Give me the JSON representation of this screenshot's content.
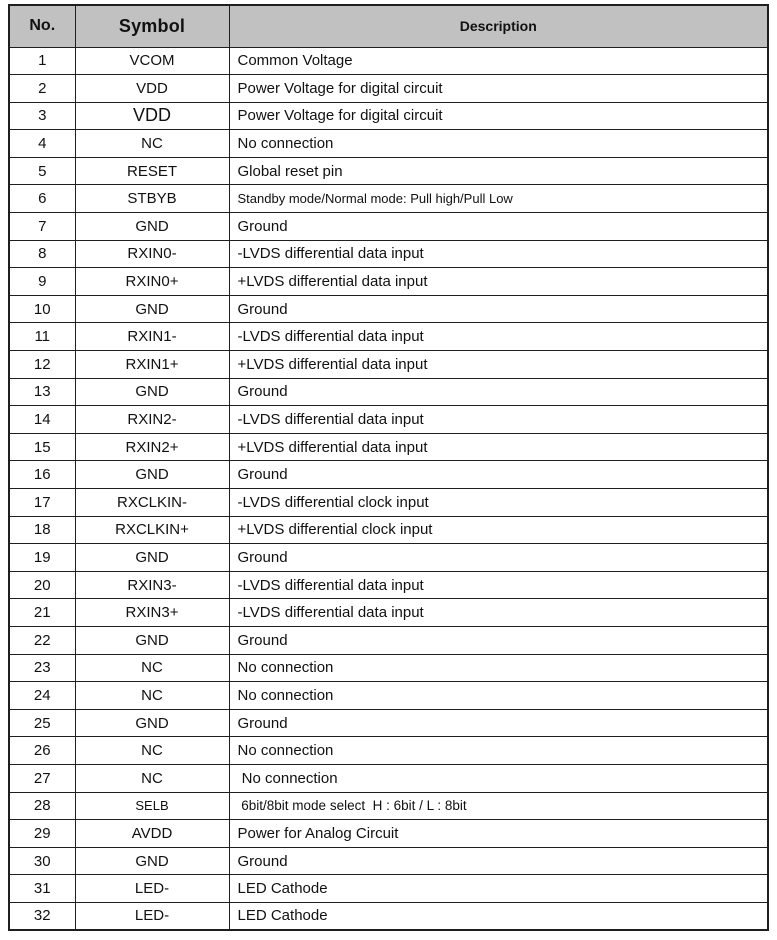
{
  "colors": {
    "page_bg": "#ffffff",
    "header_bg": "#c1c1c1",
    "border": "#1f1f1f",
    "text": "#111111"
  },
  "table": {
    "headers": {
      "no": "No.",
      "symbol": "Symbol",
      "description": "Description"
    },
    "rows": [
      {
        "no": "1",
        "symbol": "VCOM",
        "description": "Common Voltage"
      },
      {
        "no": "2",
        "symbol": "VDD",
        "description": "Power Voltage for digital circuit"
      },
      {
        "no": "3",
        "symbol": "VDD",
        "description": "Power Voltage for digital circuit"
      },
      {
        "no": "4",
        "symbol": "NC",
        "description": "No connection"
      },
      {
        "no": "5",
        "symbol": "RESET",
        "description": "Global reset pin"
      },
      {
        "no": "6",
        "symbol": "STBYB",
        "description": "Standby mode/Normal mode: Pull high/Pull Low"
      },
      {
        "no": "7",
        "symbol": "GND",
        "description": "Ground"
      },
      {
        "no": "8",
        "symbol": "RXIN0-",
        "description": "-LVDS differential data input"
      },
      {
        "no": "9",
        "symbol": "RXIN0+",
        "description": "+LVDS differential data input"
      },
      {
        "no": "10",
        "symbol": "GND",
        "description": "Ground"
      },
      {
        "no": "11",
        "symbol": "RXIN1-",
        "description": "-LVDS differential data input"
      },
      {
        "no": "12",
        "symbol": "RXIN1+",
        "description": "+LVDS differential data input"
      },
      {
        "no": "13",
        "symbol": "GND",
        "description": "Ground"
      },
      {
        "no": "14",
        "symbol": "RXIN2-",
        "description": "-LVDS differential data input"
      },
      {
        "no": "15",
        "symbol": "RXIN2+",
        "description": "+LVDS differential data input"
      },
      {
        "no": "16",
        "symbol": "GND",
        "description": "Ground"
      },
      {
        "no": "17",
        "symbol": "RXCLKIN-",
        "description": "-LVDS differential clock input"
      },
      {
        "no": "18",
        "symbol": "RXCLKIN+",
        "description": "+LVDS differential clock input"
      },
      {
        "no": "19",
        "symbol": "GND",
        "description": "Ground"
      },
      {
        "no": "20",
        "symbol": "RXIN3-",
        "description": "-LVDS differential data input"
      },
      {
        "no": "21",
        "symbol": "RXIN3+",
        "description": "-LVDS differential data input"
      },
      {
        "no": "22",
        "symbol": "GND",
        "description": "Ground"
      },
      {
        "no": "23",
        "symbol": "NC",
        "description": "No connection"
      },
      {
        "no": "24",
        "symbol": "NC",
        "description": "No connection"
      },
      {
        "no": "25",
        "symbol": "GND",
        "description": "Ground"
      },
      {
        "no": "26",
        "symbol": "NC",
        "description": "No connection"
      },
      {
        "no": "27",
        "symbol": "NC",
        "description": " No connection"
      },
      {
        "no": "28",
        "symbol": "SELB",
        "description": " 6bit/8bit mode select  H : 6bit / L : 8bit"
      },
      {
        "no": "29",
        "symbol": "AVDD",
        "description": "Power for Analog Circuit"
      },
      {
        "no": "30",
        "symbol": "GND",
        "description": "Ground"
      },
      {
        "no": "31",
        "symbol": "LED-",
        "description": "LED Cathode"
      },
      {
        "no": "32",
        "symbol": "LED-",
        "description": "LED Cathode"
      }
    ]
  }
}
